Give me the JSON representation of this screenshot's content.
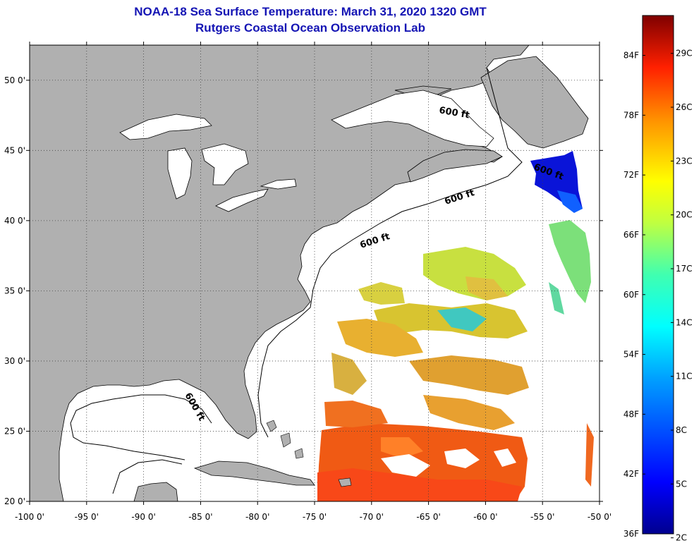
{
  "title": "NOAA-18 Sea Surface Temperature:  March 31, 2020 1320 GMT",
  "subtitle": "Rutgers Coastal Ocean Observation Lab",
  "map": {
    "lon_range": [
      -100,
      -50
    ],
    "lat_range": [
      20,
      52.5
    ],
    "lon_ticks": [
      -100,
      -95,
      -90,
      -85,
      -80,
      -75,
      -70,
      -65,
      -60,
      -55,
      -50
    ],
    "lat_ticks": [
      20,
      25,
      30,
      35,
      40,
      45,
      50
    ],
    "lon_labels": [
      "-100 0'",
      "-95 0'",
      "-90 0'",
      "-85 0'",
      "-80 0'",
      "-75 0'",
      "-70 0'",
      "-65 0'",
      "-60 0'",
      "-55 0'",
      "-50 0'"
    ],
    "lat_labels": [
      "20 0'",
      "25 0'",
      "30 0'",
      "35 0'",
      "40 0'",
      "45 0'",
      "50 0'"
    ],
    "contour_labels": [
      "600 ft",
      "600 ft",
      "600 ft",
      "600 ft",
      "600 ft"
    ],
    "land_color": "#b0b0b0",
    "ocean_color": "#ffffff"
  },
  "colorbar": {
    "f_labels": [
      "84F",
      "78F",
      "72F",
      "66F",
      "60F",
      "54F",
      "48F",
      "42F",
      "36F"
    ],
    "c_labels": [
      "29C",
      "26C",
      "23C",
      "20C",
      "17C",
      "14C",
      "11C",
      "8C",
      "5C",
      "2C"
    ],
    "f_values": [
      84,
      78,
      72,
      66,
      60,
      54,
      48,
      42,
      36
    ],
    "c_values": [
      29,
      26,
      23,
      20,
      17,
      14,
      11,
      8,
      5,
      2
    ],
    "range_f": [
      36,
      88
    ]
  }
}
